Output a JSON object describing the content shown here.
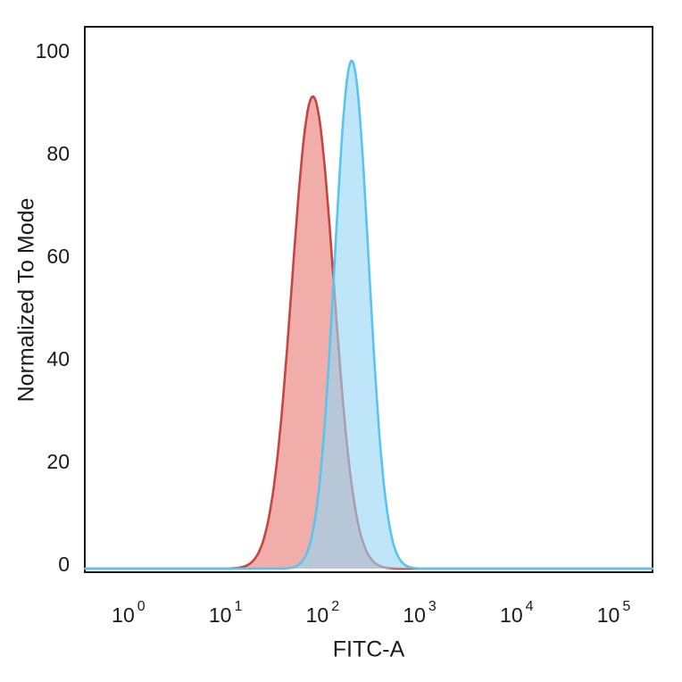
{
  "chart_data": {
    "type": "area",
    "subtype": "flow-cytometry-histogram",
    "title": "",
    "xlabel": "FITC-A",
    "ylabel": "Normalized To Mode",
    "x_scale": "log10",
    "xlim_log10": [
      -0.45,
      5.4
    ],
    "x_tick_base": "10",
    "x_tick_exponents": [
      "0",
      "1",
      "2",
      "3",
      "4",
      "5"
    ],
    "ylim": [
      0,
      100
    ],
    "y_ticks": [
      "0",
      "20",
      "40",
      "60",
      "80",
      "100"
    ],
    "grid": false,
    "legend": "none",
    "frame_color": "#1a1a1a",
    "series": [
      {
        "name": "red-population",
        "stroke": "#c7453e",
        "fill": "rgba(227,106,98,0.55)",
        "peak_log10_x": 1.9,
        "peak_x_approx": 80,
        "sigma_log10": 0.215,
        "peak_y": 92
      },
      {
        "name": "blue-population",
        "stroke": "#58c5ee",
        "fill": "rgba(150,214,243,0.62)",
        "peak_log10_x": 2.3,
        "peak_x_approx": 200,
        "sigma_log10": 0.175,
        "peak_y": 99
      }
    ]
  }
}
